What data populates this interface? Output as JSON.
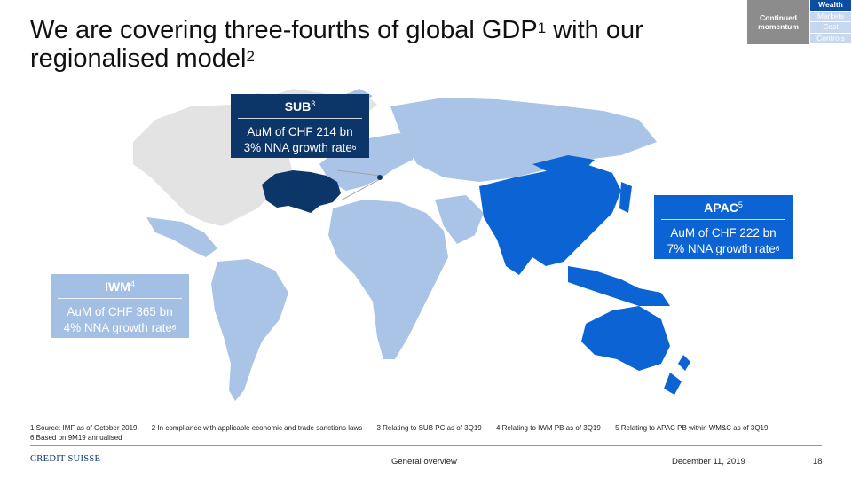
{
  "title": {
    "line1": "We are covering three-fourths of global GDP",
    "sup1": "1",
    "line1_end": " with our",
    "line2": "regionalised model",
    "sup2": "2"
  },
  "nav": {
    "section": "Continued momentum",
    "items": [
      "Wealth",
      "Markets",
      "Cost",
      "Controls"
    ],
    "active_color": "#0b4da2",
    "inactive_color": "#c7d7ee"
  },
  "boxes": {
    "sub": {
      "title": "SUB",
      "sup": "3",
      "line1": "AuM of CHF 214 bn",
      "line2": "3% NNA growth rate",
      "line2_sup": "6",
      "color": "#0d3668"
    },
    "apac": {
      "title": "APAC",
      "sup": "5",
      "line1": "AuM of CHF 222 bn",
      "line2": "7% NNA growth rate",
      "line2_sup": "6",
      "color": "#0b63d4"
    },
    "iwm": {
      "title": "IWM",
      "sup": "4",
      "line1": "AuM of CHF 365 bn",
      "line2": "4% NNA growth rate",
      "line2_sup": "6",
      "color": "#a3bfe3"
    }
  },
  "map_colors": {
    "uncovered": "#e3e3e3",
    "iwm": "#a9c4e6",
    "apac": "#0b63d4",
    "switzerland": "#0d3668"
  },
  "footnotes": [
    "1 Source: IMF as of October 2019",
    "2 In compliance with applicable economic and trade sanctions laws",
    "3 Relating to SUB PC as of 3Q19",
    "4 Relating to IWM PB as of 3Q19",
    "5 Relating to APAC PB within WM&C as of 3Q19",
    "6 Based on 9M19 annualised"
  ],
  "footer": {
    "logo": "CREDIT SUISSE",
    "section": "General overview",
    "date": "December 11, 2019",
    "page": "18"
  }
}
